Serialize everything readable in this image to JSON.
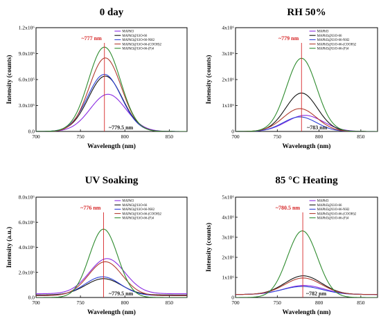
{
  "chart_data": [
    {
      "type": "line",
      "title": "0 day",
      "xlabel": "Wavelength (nm)",
      "ylabel": "Intensity (counts)",
      "xlim": [
        700,
        870
      ],
      "ylim": [
        0,
        1200000
      ],
      "xticks": [
        700,
        750,
        800,
        850
      ],
      "xtick_labels": [
        "700",
        "750",
        "800",
        "850"
      ],
      "yticks": [
        0,
        300000,
        600000,
        900000,
        1200000
      ],
      "ytick_labels": [
        "0.0",
        "3.0x10⁵",
        "6.0x10⁵",
        "9.0x10⁵",
        "1.2x10⁶"
      ],
      "legend_position": "top-right",
      "annotations": [
        {
          "text": "~777 nm",
          "x": 777,
          "color": "#d62728",
          "place": "top"
        },
        {
          "text": "~779.5 nm",
          "x": 779.5,
          "color": "#222222",
          "place": "bottom"
        }
      ],
      "series": [
        {
          "name": "MAPbI3",
          "color": "#8a2be2",
          "peak_x": 781,
          "peak_y": 430000,
          "width": 20,
          "baseline": 0
        },
        {
          "name": "MAPbI3@UiO-66",
          "color": "#111111",
          "peak_x": 778,
          "peak_y": 640000,
          "width": 19,
          "baseline": 0
        },
        {
          "name": "MAPbI3@UiO-66-NH2",
          "color": "#2b3fd6",
          "peak_x": 777,
          "peak_y": 660000,
          "width": 19,
          "baseline": 0
        },
        {
          "name": "MAPbI3@UiO-66-(COOH)2",
          "color": "#b03a2e",
          "peak_x": 778,
          "peak_y": 850000,
          "width": 18,
          "baseline": 0
        },
        {
          "name": "MAPbI3@UiO-66-(F)4",
          "color": "#2e8b2e",
          "peak_x": 777,
          "peak_y": 975000,
          "width": 18,
          "baseline": 0
        }
      ]
    },
    {
      "type": "line",
      "title": "RH 50%",
      "xlabel": "Wavelength (nm)",
      "ylabel": "Intensity (counts)",
      "xlim": [
        700,
        870
      ],
      "ylim": [
        0,
        4000000
      ],
      "xticks": [
        700,
        750,
        800,
        850
      ],
      "xtick_labels": [
        "700",
        "750",
        "800",
        "850"
      ],
      "yticks": [
        0,
        1000000,
        2000000,
        3000000,
        4000000
      ],
      "ytick_labels": [
        "0",
        "1x10⁶",
        "2x10⁶",
        "3x10⁶",
        "4x10⁶"
      ],
      "legend_position": "top-right",
      "annotations": [
        {
          "text": "~779 nm",
          "x": 779,
          "color": "#d62728",
          "place": "top"
        },
        {
          "text": "~783 nm",
          "x": 783,
          "color": "#222222",
          "place": "bottom"
        }
      ],
      "series": [
        {
          "name": "MAPbI3",
          "color": "#8a2be2",
          "peak_x": 783,
          "peak_y": 620000,
          "width": 22,
          "baseline": 0
        },
        {
          "name": "MAPbI3@UiO-66",
          "color": "#111111",
          "peak_x": 779,
          "peak_y": 1480000,
          "width": 19,
          "baseline": 0
        },
        {
          "name": "MAPbI3@UiO-66-NH2",
          "color": "#2b3fd6",
          "peak_x": 777,
          "peak_y": 560000,
          "width": 20,
          "baseline": 0
        },
        {
          "name": "MAPbI3@UiO-66-(COOH)2",
          "color": "#b03a2e",
          "peak_x": 777,
          "peak_y": 880000,
          "width": 20,
          "baseline": 0
        },
        {
          "name": "MAPbI3@UiO-66-(F)4",
          "color": "#2e8b2e",
          "peak_x": 779,
          "peak_y": 2820000,
          "width": 18,
          "baseline": 0
        }
      ]
    },
    {
      "type": "line",
      "title": "UV Soaking",
      "xlabel": "Wavelength (nm)",
      "ylabel": "Intensity (a.u.)",
      "xlim": [
        700,
        870
      ],
      "ylim": [
        0,
        8000000
      ],
      "xticks": [
        700,
        750,
        800,
        850
      ],
      "xtick_labels": [
        "700",
        "750",
        "800",
        "850"
      ],
      "yticks": [
        0,
        2000000,
        4000000,
        6000000,
        8000000
      ],
      "ytick_labels": [
        "0.0",
        "2.0x10⁶",
        "4.0x10⁶",
        "6.0x10⁶",
        "8.0x10⁶"
      ],
      "legend_position": "top-right",
      "annotations": [
        {
          "text": "~776 nm",
          "x": 776,
          "color": "#d62728",
          "place": "top"
        },
        {
          "text": "~779.5 nm",
          "x": 779.5,
          "color": "#222222",
          "place": "bottom"
        }
      ],
      "series": [
        {
          "name": "MAPbI3",
          "color": "#8a2be2",
          "peak_x": 780,
          "peak_y": 2800000,
          "width": 20,
          "baseline": 300000
        },
        {
          "name": "MAPbI3@UiO-66",
          "color": "#111111",
          "peak_x": 776,
          "peak_y": 1300000,
          "width": 20,
          "baseline": 200000
        },
        {
          "name": "MAPbI3@UiO-66-NH2",
          "color": "#2b3fd6",
          "peak_x": 775,
          "peak_y": 1500000,
          "width": 20,
          "baseline": 150000
        },
        {
          "name": "MAPbI3@UiO-66-(COOH)2",
          "color": "#b03a2e",
          "peak_x": 778,
          "peak_y": 2700000,
          "width": 19,
          "baseline": 150000
        },
        {
          "name": "MAPbI3@UiO-66-(F)4",
          "color": "#2e8b2e",
          "peak_x": 776,
          "peak_y": 5450000,
          "width": 16,
          "baseline": 0
        }
      ]
    },
    {
      "type": "line",
      "title": "85 °C Heating",
      "xlabel": "Wavelength (nm)",
      "ylabel": "Intensity (counts)",
      "xlim": [
        700,
        870
      ],
      "ylim": [
        0,
        5000000
      ],
      "xticks": [
        700,
        750,
        800,
        850
      ],
      "xtick_labels": [
        "700",
        "750",
        "800",
        "850"
      ],
      "yticks": [
        0,
        1000000,
        2000000,
        3000000,
        4000000,
        5000000
      ],
      "ytick_labels": [
        "0",
        "1x10⁶",
        "2x10⁶",
        "3x10⁶",
        "4x10⁶",
        "5x10⁶"
      ],
      "legend_position": "top-right",
      "annotations": [
        {
          "text": "~780.5 nm",
          "x": 780.5,
          "color": "#d62728",
          "place": "top"
        },
        {
          "text": "~782 nm",
          "x": 782,
          "color": "#222222",
          "place": "bottom"
        }
      ],
      "series": [
        {
          "name": "MAPbI3",
          "color": "#8a2be2",
          "peak_x": 782,
          "peak_y": 450000,
          "width": 24,
          "baseline": 150000
        },
        {
          "name": "MAPbI3@UiO-66",
          "color": "#111111",
          "peak_x": 781,
          "peak_y": 930000,
          "width": 22,
          "baseline": 150000
        },
        {
          "name": "MAPbI3@UiO-66-NH2",
          "color": "#2b3fd6",
          "peak_x": 780,
          "peak_y": 400000,
          "width": 24,
          "baseline": 150000
        },
        {
          "name": "MAPbI3@UiO-66-(COOH)2",
          "color": "#b03a2e",
          "peak_x": 781,
          "peak_y": 820000,
          "width": 22,
          "baseline": 150000
        },
        {
          "name": "MAPbI3@UiO-66-(F)4",
          "color": "#2e8b2e",
          "peak_x": 780,
          "peak_y": 3320000,
          "width": 18,
          "baseline": 0
        }
      ]
    }
  ]
}
